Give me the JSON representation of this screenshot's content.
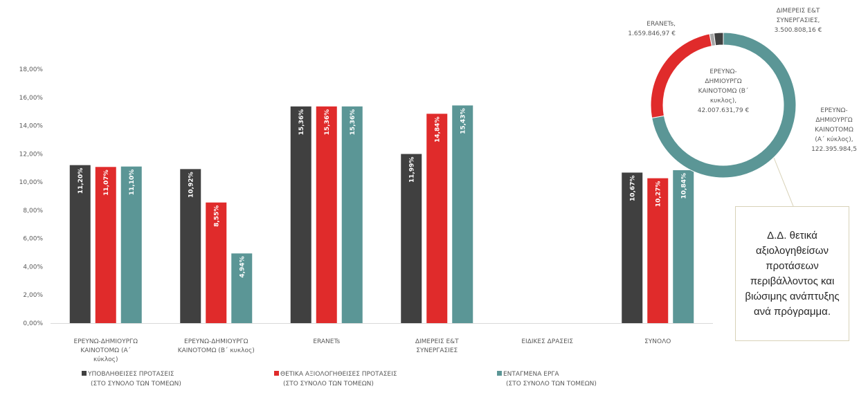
{
  "chart_data": [
    {
      "type": "bar",
      "categories": [
        [
          "ΕΡΕΥΝΩ-ΔΗΜΙΟΥΡΓΩ",
          "ΚΑΙΝΟΤΟΜΩ (Α΄",
          "κύκλος)"
        ],
        [
          "ΕΡΕΥΝΩ-ΔΗΜΙΟΥΡΓΩ",
          "ΚΑΙΝΟΤΟΜΩ (Β΄ κυκλος)"
        ],
        [
          "ERANETs"
        ],
        [
          "ΔΙΜΕΡΕΙΣ Ε&Τ",
          "ΣΥΝΕΡΓΑΣΙΕΣ"
        ],
        [
          "ΕΙΔΙΚΕΣ ΔΡΑΣΕΙΣ"
        ],
        [
          "ΣΥΝΟΛΟ"
        ]
      ],
      "series": [
        {
          "name": [
            "ΥΠΟΒΛΗΘΕΙΣΕΣ ΠΡΟΤΑΣΕΙΣ",
            "(ΣΤΟ ΣΥΝΟΛΟ ΤΩΝ ΤΟΜΕΩΝ)"
          ],
          "color": "#404040",
          "values": [
            11.2,
            10.92,
            15.36,
            11.99,
            null,
            10.67
          ],
          "labels": [
            "11,20%",
            "10,92%",
            "15,36%",
            "11,99%",
            "",
            "10,67%"
          ]
        },
        {
          "name": [
            "ΘΕΤΙΚΑ ΑΞΙΟΛΟΓΗΘΕΙΣΕΣ ΠΡΟΤΑΣΕΙΣ",
            "(ΣΤΟ ΣΥΝΟΛΟ ΤΩΝ ΤΟΜΕΩΝ)"
          ],
          "color": "#e02b2b",
          "values": [
            11.07,
            8.55,
            15.36,
            14.84,
            null,
            10.27
          ],
          "labels": [
            "11,07%",
            "8,55%",
            "15,36%",
            "14,84%",
            "",
            "10,27%"
          ]
        },
        {
          "name": [
            "ΕΝΤΑΓΜΕΝΑ ΕΡΓΑ",
            "(ΣΤΟ ΣΥΝΟΛΟ ΤΩΝ ΤΟΜΕΩΝ)"
          ],
          "color": "#5b9696",
          "values": [
            11.1,
            4.94,
            15.36,
            15.43,
            null,
            10.84
          ],
          "labels": [
            "11,10%",
            "4,94%",
            "15,36%",
            "15,43%",
            "",
            "10,84%"
          ]
        }
      ],
      "ylim": [
        0,
        18
      ],
      "ytick_step": 2,
      "ytick_labels": [
        "0,00%",
        "2,00%",
        "4,00%",
        "6,00%",
        "8,00%",
        "10,00%",
        "12,00%",
        "14,00%",
        "16,00%",
        "18,00%"
      ],
      "grid": false,
      "legend_position": "bottom"
    },
    {
      "type": "pie",
      "donut": true,
      "slices": [
        {
          "key": "a",
          "value": 122395984.5,
          "color": "#5b9696",
          "label": [
            "ΕΡΕΥΝΩ-",
            "ΔΗΜΙΟΥΡΓΩ",
            "ΚΑΙΝΟΤΟΜΩ",
            "(Α΄ κύκλος),",
            "122.395.984,5"
          ]
        },
        {
          "key": "b",
          "value": 42007631.79,
          "color": "#e02b2b",
          "label": [
            "ΕΡΕΥΝΩ-",
            "ΔΗΜΙΟΥΡΓΩ",
            "ΚΑΙΝΟΤΟΜΩ (Β΄",
            "κυκλος),",
            "42.007.631,79 €"
          ]
        },
        {
          "key": "c",
          "value": 1659846.97,
          "color": "#a6a6a6",
          "label": [
            "ERANETs,",
            "1.659.846,97 €"
          ]
        },
        {
          "key": "d",
          "value": 3500808.16,
          "color": "#404040",
          "label": [
            "ΔΙΜΕΡΕΙΣ Ε&Τ",
            "ΣΥΝΕΡΓΑΣΙΕΣ,",
            "3.500.808,16 €"
          ]
        }
      ]
    }
  ],
  "callout": {
    "text": "Δ.Δ. θετικά αξιολογηθείσων προτάσεων περιβάλλοντος και βιώσιμης ανάπτυξης ανά πρόγραμμα."
  }
}
